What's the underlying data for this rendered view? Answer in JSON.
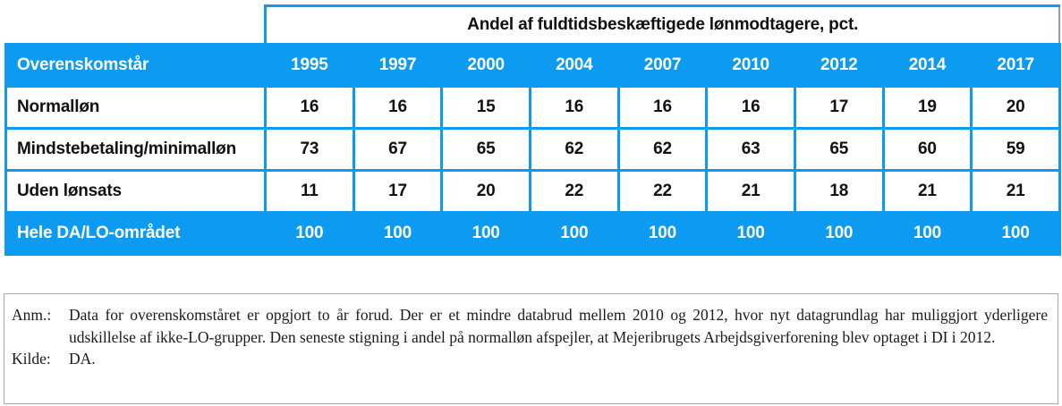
{
  "table": {
    "span_header": "Andel af fuldtidsbeskæftigede lønmodtagere, pct.",
    "corner_header": "Overenskomstår",
    "years": [
      "1995",
      "1997",
      "2000",
      "2004",
      "2007",
      "2010",
      "2012",
      "2014",
      "2017"
    ],
    "rows": [
      {
        "label": "Normalløn",
        "values": [
          "16",
          "16",
          "15",
          "16",
          "16",
          "16",
          "17",
          "19",
          "20"
        ]
      },
      {
        "label": "Mindstebetaling/minimalløn",
        "values": [
          "73",
          "67",
          "65",
          "62",
          "62",
          "63",
          "65",
          "60",
          "59"
        ]
      },
      {
        "label": "Uden lønsats",
        "values": [
          "11",
          "17",
          "20",
          "22",
          "22",
          "21",
          "18",
          "21",
          "21"
        ]
      }
    ],
    "total_row": {
      "label": "Hele DA/LO-området",
      "values": [
        "100",
        "100",
        "100",
        "100",
        "100",
        "100",
        "100",
        "100",
        "100"
      ]
    }
  },
  "notes": {
    "anm_label": "Anm.:",
    "anm_text": "Data for overenskomståret er opgjort to år forud. Der er et mindre databrud mellem 2010 og 2012, hvor nyt datagrundlag har muliggjort yderligere udskillelse af ikke-LO-grupper. Den seneste stigning i andel på normalløn afspejler, at Mejeribrugets Arbejdsgiverforening blev optaget i DI i 2012.",
    "kilde_label": "Kilde:",
    "kilde_text": "DA."
  },
  "colors": {
    "accent_blue": "#0d9bf2",
    "span_header_right_border": "#8d9cb2",
    "note_box_border": "#a9a9a9"
  }
}
